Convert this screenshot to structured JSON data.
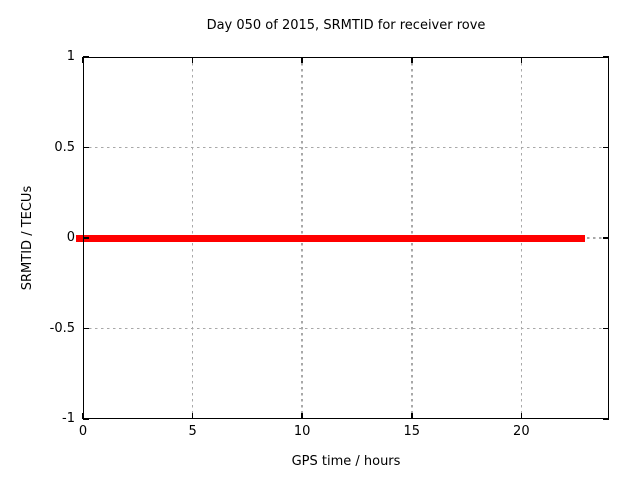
{
  "chart_data": {
    "type": "line",
    "title": "Day 050 of 2015, SRMTID for receiver rove",
    "xlabel": "GPS time / hours",
    "ylabel": "SRMTID / TECUs",
    "xlim": [
      0,
      24
    ],
    "ylim": [
      -1,
      1
    ],
    "xtick_values": [
      0,
      5,
      10,
      15,
      20
    ],
    "xtick_labels": [
      "0",
      "5",
      "10",
      "15",
      "20"
    ],
    "ytick_values": [
      1,
      0.5,
      0,
      -0.5,
      -1
    ],
    "ytick_labels": [
      "1",
      "0.5",
      "0",
      "-0.5",
      "-1"
    ],
    "grid": true,
    "legend": "none",
    "colors": {
      "series": "#ff0000",
      "grid": "#a8a8a8",
      "border": "#000000",
      "background": "#ffffff",
      "text": "#000000"
    },
    "series": [
      {
        "name": "SRMTID",
        "color": "#ff0000",
        "constant_y": 0,
        "x_start": 0,
        "x_end": 22.9
      }
    ]
  }
}
